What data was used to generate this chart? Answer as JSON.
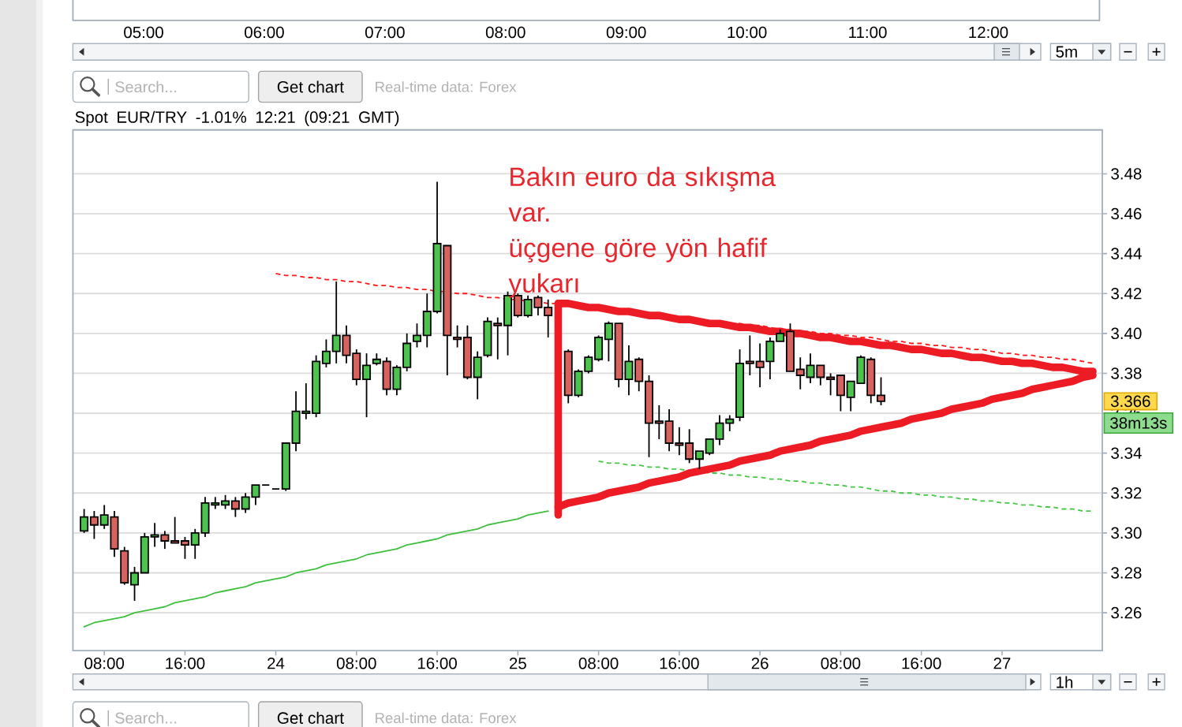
{
  "chart_data": {
    "type": "candlestick",
    "title": "Spot EUR/TRY -1.01% 12:21 (09:21 GMT)",
    "categories": [
      null,
      null,
      "08:00",
      null,
      null,
      null,
      null,
      null,
      null,
      null,
      "16:00",
      null,
      null,
      null,
      null,
      null,
      null,
      null,
      null,
      "24",
      null,
      null,
      null,
      null,
      null,
      null,
      null,
      "08:00",
      null,
      null,
      null,
      null,
      null,
      null,
      null,
      "16:00",
      null,
      null,
      null,
      null,
      null,
      null,
      null,
      "25",
      null,
      null,
      null,
      null,
      null,
      null,
      null,
      "08:00",
      null,
      null,
      null,
      null,
      null,
      null,
      null,
      "16:00",
      null,
      null,
      null,
      null,
      null,
      null,
      null,
      "26",
      null,
      null,
      null,
      null,
      null,
      null,
      null,
      "08:00",
      null,
      null,
      null,
      null,
      null,
      null,
      null,
      "16:00",
      null,
      null,
      null,
      null,
      null,
      null,
      null,
      "27",
      null,
      null,
      null,
      null,
      null,
      null,
      null,
      null,
      null
    ],
    "ohlc": [
      [
        3.301,
        3.312,
        3.3,
        3.308
      ],
      [
        3.308,
        3.311,
        3.297,
        3.304
      ],
      [
        3.304,
        3.314,
        3.302,
        3.309
      ],
      [
        3.308,
        3.311,
        3.288,
        3.292
      ],
      [
        3.291,
        3.293,
        3.274,
        3.275
      ],
      [
        3.274,
        3.283,
        3.266,
        3.28
      ],
      [
        3.28,
        3.3,
        3.28,
        3.298
      ],
      [
        3.298,
        3.305,
        3.293,
        3.299
      ],
      [
        3.299,
        3.301,
        3.292,
        3.296
      ],
      [
        3.296,
        3.308,
        3.295,
        3.295
      ],
      [
        3.296,
        3.298,
        3.287,
        3.294
      ],
      [
        3.294,
        3.302,
        3.287,
        3.3
      ],
      [
        3.3,
        3.318,
        3.298,
        3.315
      ],
      [
        3.314,
        3.318,
        3.312,
        3.315
      ],
      [
        3.314,
        3.319,
        3.312,
        3.316
      ],
      [
        3.316,
        3.318,
        3.308,
        3.312
      ],
      [
        3.312,
        3.32,
        3.31,
        3.318
      ],
      [
        3.318,
        3.324,
        3.314,
        3.324
      ],
      [
        3.324,
        3.324,
        3.324,
        3.324
      ],
      [
        3.322,
        3.322,
        3.322,
        3.322
      ],
      [
        3.322,
        3.345,
        3.321,
        3.345
      ],
      [
        3.345,
        3.371,
        3.341,
        3.361
      ],
      [
        3.36,
        3.375,
        3.357,
        3.361
      ],
      [
        3.36,
        3.389,
        3.358,
        3.386
      ],
      [
        3.385,
        3.397,
        3.383,
        3.391
      ],
      [
        3.391,
        3.426,
        3.385,
        3.399
      ],
      [
        3.399,
        3.404,
        3.385,
        3.389
      ],
      [
        3.39,
        3.392,
        3.374,
        3.377
      ],
      [
        3.377,
        3.39,
        3.358,
        3.384
      ],
      [
        3.385,
        3.39,
        3.384,
        3.387
      ],
      [
        3.386,
        3.388,
        3.369,
        3.372
      ],
      [
        3.372,
        3.384,
        3.369,
        3.383
      ],
      [
        3.383,
        3.4,
        3.381,
        3.395
      ],
      [
        3.396,
        3.405,
        3.393,
        3.399
      ],
      [
        3.399,
        3.42,
        3.393,
        3.411
      ],
      [
        3.411,
        3.476,
        3.41,
        3.445
      ],
      [
        3.444,
        3.444,
        3.379,
        3.399
      ],
      [
        3.398,
        3.404,
        3.393,
        3.397
      ],
      [
        3.398,
        3.404,
        3.377,
        3.378
      ],
      [
        3.378,
        3.391,
        3.367,
        3.388
      ],
      [
        3.389,
        3.408,
        3.388,
        3.406
      ],
      [
        3.405,
        3.408,
        3.387,
        3.404
      ],
      [
        3.404,
        3.421,
        3.389,
        3.419
      ],
      [
        3.419,
        3.42,
        3.408,
        3.409
      ],
      [
        3.409,
        3.419,
        3.408,
        3.417
      ],
      [
        3.418,
        3.419,
        3.409,
        3.413
      ],
      [
        3.413,
        3.417,
        3.398,
        3.409
      ],
      null,
      [
        3.391,
        3.392,
        3.365,
        3.369
      ],
      [
        3.369,
        3.382,
        3.368,
        3.381
      ],
      [
        3.381,
        3.389,
        3.38,
        3.388
      ],
      [
        3.387,
        3.399,
        3.386,
        3.398
      ],
      [
        3.397,
        3.406,
        3.386,
        3.405
      ],
      [
        3.405,
        3.405,
        3.373,
        3.377
      ],
      [
        3.377,
        3.394,
        3.369,
        3.386
      ],
      [
        3.387,
        3.388,
        3.371,
        3.376
      ],
      [
        3.376,
        3.379,
        3.338,
        3.355
      ],
      [
        3.356,
        3.364,
        3.347,
        3.355
      ],
      [
        3.356,
        3.362,
        3.341,
        3.345
      ],
      [
        3.345,
        3.353,
        3.339,
        3.344
      ],
      [
        3.345,
        3.352,
        3.335,
        3.337
      ],
      [
        3.337,
        3.341,
        3.332,
        3.341
      ],
      [
        3.34,
        3.347,
        3.339,
        3.347
      ],
      [
        3.347,
        3.359,
        3.344,
        3.355
      ],
      [
        3.355,
        3.359,
        3.351,
        3.357
      ],
      [
        3.358,
        3.392,
        3.356,
        3.385
      ],
      [
        3.386,
        3.399,
        3.379,
        3.385
      ],
      [
        3.386,
        3.395,
        3.373,
        3.383
      ],
      [
        3.386,
        3.398,
        3.377,
        3.396
      ],
      [
        3.396,
        3.402,
        3.396,
        3.4
      ],
      [
        3.401,
        3.405,
        3.381,
        3.381
      ],
      [
        3.382,
        3.388,
        3.372,
        3.379
      ],
      [
        3.378,
        3.39,
        3.375,
        3.384
      ],
      [
        3.384,
        3.384,
        3.374,
        3.378
      ],
      [
        3.378,
        3.38,
        3.369,
        3.377
      ],
      [
        3.379,
        3.379,
        3.361,
        3.369
      ],
      [
        3.368,
        3.376,
        3.361,
        3.376
      ],
      [
        3.375,
        3.389,
        3.375,
        3.388
      ],
      [
        3.387,
        3.388,
        3.365,
        3.369
      ],
      [
        3.369,
        3.378,
        3.364,
        3.366
      ],
      null,
      null,
      null,
      null,
      null,
      null,
      null,
      null,
      null,
      null,
      null,
      null,
      null,
      null,
      null,
      null,
      null,
      null,
      null,
      null,
      null
    ],
    "colors": [
      "#4cc34c",
      "#d8625d",
      "#4cc34c",
      "#d8625d",
      "#d8625d",
      "#4cc34c",
      "#4cc34c",
      "#4cc34c",
      "#d8625d",
      "#d8625d",
      "#d8625d",
      "#4cc34c",
      "#4cc34c",
      "#4cc34c",
      "#4cc34c",
      "#d8625d",
      "#4cc34c",
      "#4cc34c",
      "#000000",
      "#000000",
      "#4cc34c",
      "#4cc34c",
      "#4cc34c",
      "#4cc34c",
      "#4cc34c",
      "#4cc34c",
      "#d8625d",
      "#d8625d",
      "#4cc34c",
      "#4cc34c",
      "#d8625d",
      "#4cc34c",
      "#4cc34c",
      "#4cc34c",
      "#4cc34c",
      "#4cc34c",
      "#d8625d",
      "#d8625d",
      "#d8625d",
      "#4cc34c",
      "#4cc34c",
      "#d8625d",
      "#4cc34c",
      "#d8625d",
      "#4cc34c",
      "#d8625d",
      "#d8625d",
      null,
      "#d8625d",
      "#4cc34c",
      "#4cc34c",
      "#4cc34c",
      "#4cc34c",
      "#d8625d",
      "#4cc34c",
      "#d8625d",
      "#d8625d",
      "#d8625d",
      "#d8625d",
      "#d8625d",
      "#d8625d",
      "#4cc34c",
      "#4cc34c",
      "#4cc34c",
      "#4cc34c",
      "#4cc34c",
      "#d8625d",
      "#d8625d",
      "#4cc34c",
      "#4cc34c",
      "#d8625d",
      "#d8625d",
      "#4cc34c",
      "#d8625d",
      "#d8625d",
      "#d8625d",
      "#4cc34c",
      "#4cc34c",
      "#d8625d",
      "#d8625d",
      null,
      null,
      null,
      null,
      null,
      null,
      null,
      null,
      null,
      null,
      null,
      null,
      null,
      null,
      null,
      null,
      null,
      null,
      null,
      null,
      null
    ],
    "series": [
      {
        "type": "line",
        "color": "#3fbf3f",
        "values": [
          3.253,
          3.255,
          3.256,
          3.257,
          3.258,
          3.26,
          3.261,
          3.262,
          3.263,
          3.265,
          3.266,
          3.267,
          3.268,
          3.27,
          3.271,
          3.272,
          3.273,
          3.275,
          3.276,
          3.277,
          3.278,
          3.28,
          3.281,
          3.282,
          3.284,
          3.285,
          3.286,
          3.287,
          3.289,
          3.29,
          3.291,
          3.292,
          3.294,
          3.295,
          3.296,
          3.297,
          3.299,
          3.3,
          3.301,
          3.302,
          3.304,
          3.305,
          3.306,
          3.307,
          3.309,
          3.31,
          3.311,
          null,
          null,
          null,
          null,
          null,
          null,
          null,
          null,
          null,
          null,
          null,
          null,
          null,
          null,
          null,
          null,
          null,
          null,
          null,
          null,
          null,
          null,
          null,
          null,
          null,
          null,
          null,
          null,
          null,
          null,
          null,
          null,
          null,
          null,
          null,
          null,
          null,
          null,
          null,
          null,
          null,
          null,
          null,
          null,
          null,
          null,
          null,
          null,
          null,
          null,
          null,
          null,
          null,
          null
        ]
      },
      {
        "type": "line",
        "color": "#ff1a1a",
        "line_style": "dashed",
        "values": [
          null,
          null,
          null,
          null,
          null,
          null,
          null,
          null,
          null,
          null,
          null,
          null,
          null,
          null,
          null,
          null,
          null,
          null,
          null,
          3.43,
          3.429,
          3.429,
          3.428,
          3.428,
          3.427,
          3.427,
          3.426,
          3.426,
          3.425,
          3.424,
          3.424,
          3.423,
          3.423,
          3.422,
          3.422,
          3.421,
          3.421,
          3.42,
          3.42,
          3.419,
          3.418,
          3.418,
          3.417,
          3.417,
          3.416,
          3.416,
          3.415,
          3.415,
          3.414,
          3.413,
          3.413,
          3.412,
          3.412,
          3.411,
          3.411,
          3.41,
          3.41,
          3.409,
          3.409,
          3.408,
          3.407,
          3.407,
          3.406,
          3.406,
          3.405,
          3.405,
          3.404,
          3.404,
          3.403,
          3.402,
          3.402,
          3.401,
          3.401,
          3.4,
          3.4,
          3.399,
          3.399,
          3.398,
          3.398,
          3.397,
          3.396,
          3.396,
          3.395,
          3.395,
          3.394,
          3.394,
          3.393,
          3.393,
          3.392,
          3.392,
          3.391,
          3.39,
          3.39,
          3.389,
          3.389,
          3.388,
          3.388,
          3.387,
          3.387,
          3.386,
          3.385
        ]
      },
      {
        "type": "line",
        "color": "#45c845",
        "line_style": "dashed",
        "values": [
          null,
          null,
          null,
          null,
          null,
          null,
          null,
          null,
          null,
          null,
          null,
          null,
          null,
          null,
          null,
          null,
          null,
          null,
          null,
          null,
          null,
          null,
          null,
          null,
          null,
          null,
          null,
          null,
          null,
          null,
          null,
          null,
          null,
          null,
          null,
          null,
          null,
          null,
          null,
          null,
          null,
          null,
          null,
          null,
          null,
          null,
          null,
          null,
          null,
          null,
          null,
          3.336,
          3.335,
          3.335,
          3.334,
          3.334,
          3.333,
          3.333,
          3.332,
          3.332,
          3.331,
          3.331,
          3.33,
          3.33,
          3.329,
          3.329,
          3.328,
          3.328,
          3.327,
          3.327,
          3.326,
          3.326,
          3.325,
          3.325,
          3.324,
          3.324,
          3.323,
          3.323,
          3.322,
          3.321,
          3.321,
          3.32,
          3.32,
          3.319,
          3.319,
          3.318,
          3.318,
          3.317,
          3.317,
          3.316,
          3.316,
          3.315,
          3.315,
          3.314,
          3.314,
          3.313,
          3.313,
          3.312,
          3.312,
          3.311,
          3.311
        ]
      },
      {
        "type": "line",
        "color": "#ed1c24",
        "values": [
          null,
          null,
          null,
          null,
          null,
          null,
          null,
          null,
          null,
          null,
          null,
          null,
          null,
          null,
          null,
          null,
          null,
          null,
          null,
          null,
          null,
          null,
          null,
          null,
          null,
          null,
          null,
          null,
          null,
          null,
          null,
          null,
          null,
          null,
          null,
          null,
          null,
          null,
          null,
          null,
          null,
          null,
          null,
          null,
          null,
          null,
          null,
          3.415,
          3.415,
          3.414,
          3.413,
          3.413,
          3.412,
          3.411,
          3.411,
          3.41,
          3.409,
          3.409,
          3.408,
          3.407,
          3.407,
          3.406,
          3.405,
          3.405,
          3.404,
          3.403,
          3.403,
          3.402,
          3.401,
          3.401,
          3.4,
          3.4,
          3.399,
          3.398,
          3.398,
          3.397,
          3.396,
          3.396,
          3.395,
          3.394,
          3.394,
          3.393,
          3.392,
          3.392,
          3.391,
          3.39,
          3.39,
          3.389,
          3.388,
          3.388,
          3.387,
          3.386,
          3.386,
          3.385,
          3.385,
          3.384,
          3.383,
          3.383,
          3.382,
          3.381,
          3.381
        ]
      },
      {
        "type": "line",
        "color": "#ed1c24",
        "values": [
          null,
          null,
          null,
          null,
          null,
          null,
          null,
          null,
          null,
          null,
          null,
          null,
          null,
          null,
          null,
          null,
          null,
          null,
          null,
          null,
          null,
          null,
          null,
          null,
          null,
          null,
          null,
          null,
          null,
          null,
          null,
          null,
          null,
          null,
          null,
          null,
          null,
          null,
          null,
          null,
          null,
          null,
          null,
          null,
          null,
          null,
          null,
          3.313,
          3.315,
          3.316,
          3.317,
          3.318,
          3.32,
          3.321,
          3.322,
          3.323,
          3.325,
          3.326,
          3.327,
          3.328,
          3.33,
          3.331,
          3.332,
          3.333,
          3.334,
          3.336,
          3.337,
          3.338,
          3.339,
          3.341,
          3.342,
          3.343,
          3.344,
          3.346,
          3.347,
          3.348,
          3.349,
          3.351,
          3.352,
          3.353,
          3.354,
          3.355,
          3.357,
          3.358,
          3.359,
          3.36,
          3.362,
          3.363,
          3.364,
          3.365,
          3.367,
          3.368,
          3.369,
          3.37,
          3.372,
          3.373,
          3.374,
          3.375,
          3.376,
          3.378,
          3.379
        ]
      }
    ],
    "ylim": [
      3.241,
      3.502
    ],
    "yticks": [
      3.26,
      3.28,
      {
        "value": 3.3,
        "label": "3.30"
      },
      3.32,
      3.34,
      3.36,
      3.38,
      {
        "value": 3.4,
        "label": "3.40"
      },
      3.42,
      3.44,
      3.46,
      3.48
    ],
    "grid": "y",
    "annotations": [
      "05:00",
      "06:00",
      "07:00",
      "08:00",
      "09:00",
      "10:00",
      "11:00",
      "12:00",
      "5m",
      "Search...",
      "Get chart",
      "Real-time data: Forex",
      "Bakın euro da sıkışma var.",
      "üçgene göre yön hafif yukarı",
      {
        "text": "3.366",
        "y": 3.366
      },
      "38m13s",
      "1h",
      "Search...",
      "Get chart",
      "Real-time data: Forex"
    ]
  }
}
